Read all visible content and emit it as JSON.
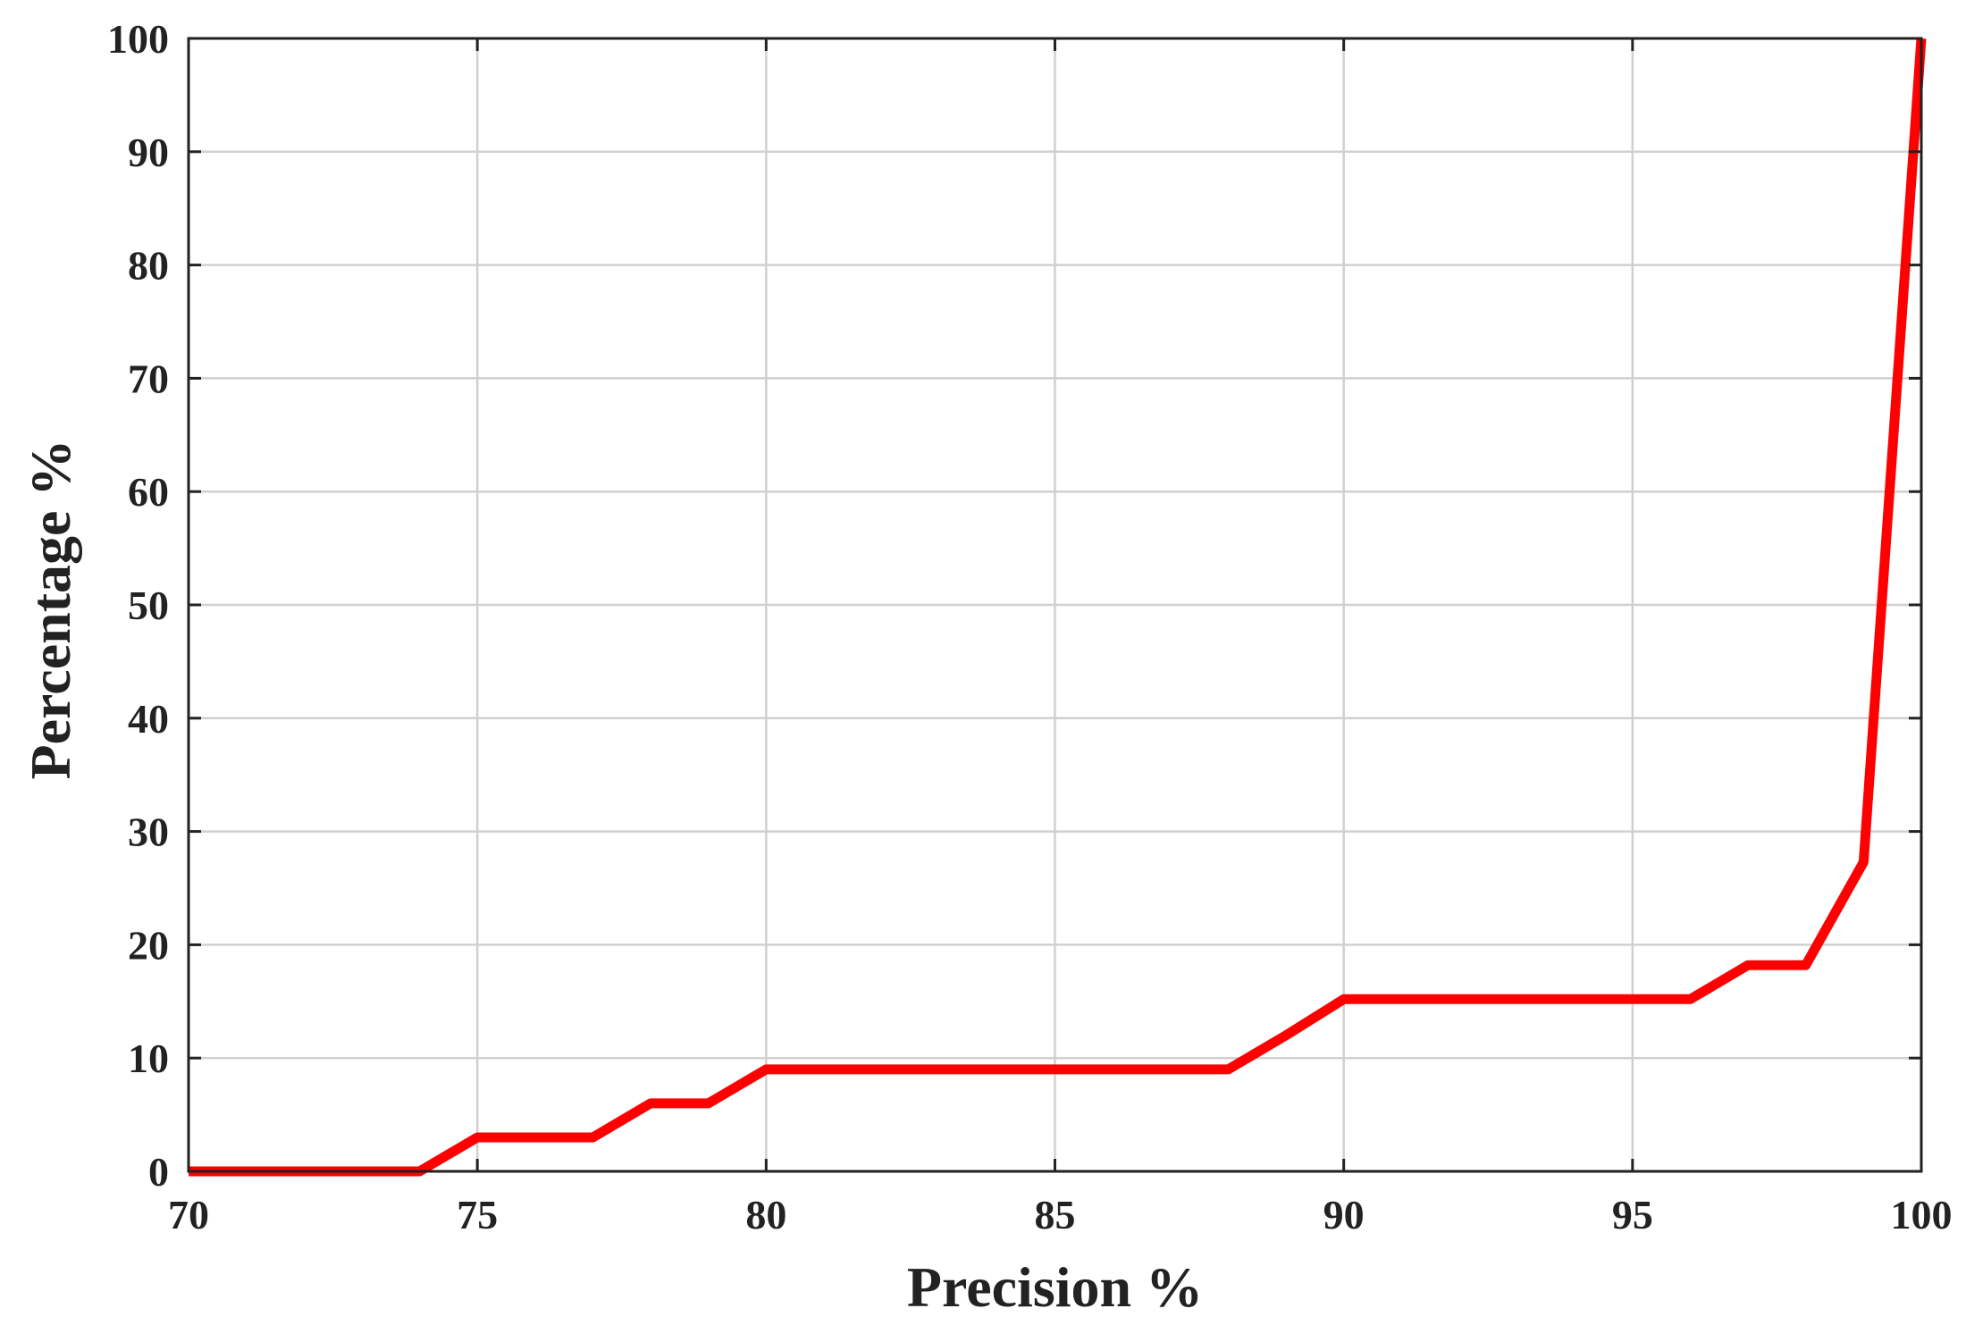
{
  "chart_data": {
    "type": "line",
    "title": "",
    "xlabel": "Precision %",
    "ylabel": "Percentage %",
    "xlim": [
      70,
      100
    ],
    "ylim": [
      0,
      100
    ],
    "xticks": [
      70,
      75,
      80,
      85,
      90,
      95,
      100
    ],
    "yticks": [
      0,
      10,
      20,
      30,
      40,
      50,
      60,
      70,
      80,
      90,
      100
    ],
    "xtick_labels": [
      "70",
      "75",
      "80",
      "85",
      "90",
      "95",
      "100"
    ],
    "ytick_labels": [
      "0",
      "10",
      "20",
      "30",
      "40",
      "50",
      "60",
      "70",
      "80",
      "90",
      "100"
    ],
    "grid": true,
    "legend": "none",
    "series": [
      {
        "color": "#ff0000",
        "x": [
          70,
          71,
          72,
          73,
          74,
          75,
          76,
          77,
          78,
          79,
          80,
          81,
          82,
          83,
          84,
          85,
          86,
          87,
          88,
          89,
          90,
          91,
          92,
          93,
          94,
          95,
          96,
          97,
          98,
          99,
          100
        ],
        "y": [
          0,
          0,
          0,
          0,
          0,
          3,
          3,
          3,
          6,
          6,
          9,
          9,
          9,
          9,
          9,
          9,
          9,
          9,
          9,
          12,
          15.2,
          15.2,
          15.2,
          15.2,
          15.2,
          15.2,
          15.2,
          18.2,
          18.2,
          27.3,
          100
        ]
      }
    ]
  }
}
